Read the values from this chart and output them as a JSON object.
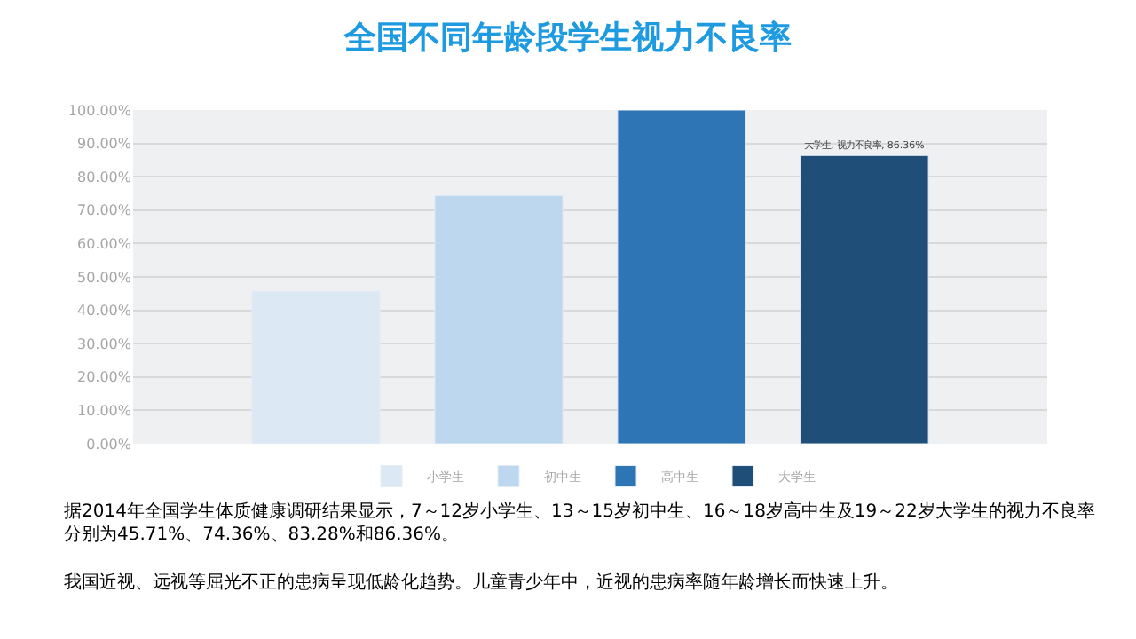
{
  "chart_data": {
    "type": "bar",
    "title": "全国不同年龄段学生视力不良率",
    "categories": [
      null
    ],
    "series": [
      {
        "name": "小学生",
        "color": "#dce9f5",
        "values": [
          45.7
        ]
      },
      {
        "name": "初中生",
        "color": "#bdd7ee",
        "values": [
          74.4
        ]
      },
      {
        "name": "高中生",
        "color": "#2e75b6",
        "values": [
          100
        ]
      },
      {
        "name": "大学生",
        "color": "#1f4e79",
        "values": [
          86.36
        ],
        "value_labels": [
          "大学生, 视力不良率, 86.36%"
        ]
      }
    ],
    "ylim": [
      0,
      100
    ],
    "yticks": [
      {
        "value": 0,
        "label": "0.00%"
      },
      {
        "value": 10,
        "label": "10.00%"
      },
      {
        "value": 20,
        "label": "20.00%"
      },
      {
        "value": 30,
        "label": "30.00%"
      },
      {
        "value": 40,
        "label": "40.00%"
      },
      {
        "value": 50,
        "label": "50.00%"
      },
      {
        "value": 60,
        "label": "60.00%"
      },
      {
        "value": 70,
        "label": "70.00%"
      },
      {
        "value": 80,
        "label": "80.00%"
      },
      {
        "value": 90,
        "label": "90.00%"
      },
      {
        "value": 100,
        "label": "100.00%"
      }
    ],
    "grid": "y",
    "legend": "bottom",
    "annotations": [
      "据2014年全国学生体质健康调研结果显示，7～12岁小学生、13～15岁初中生、16～18岁高中生及19～22岁大学生的视力不良率分别为45.71%、74.36%、83.28%和86.36%。",
      "我国近视、远视等屈光不正的患病呈现低龄化趋势。儿童青少年中，近视的患病率随年龄增长而快速上升。"
    ]
  }
}
